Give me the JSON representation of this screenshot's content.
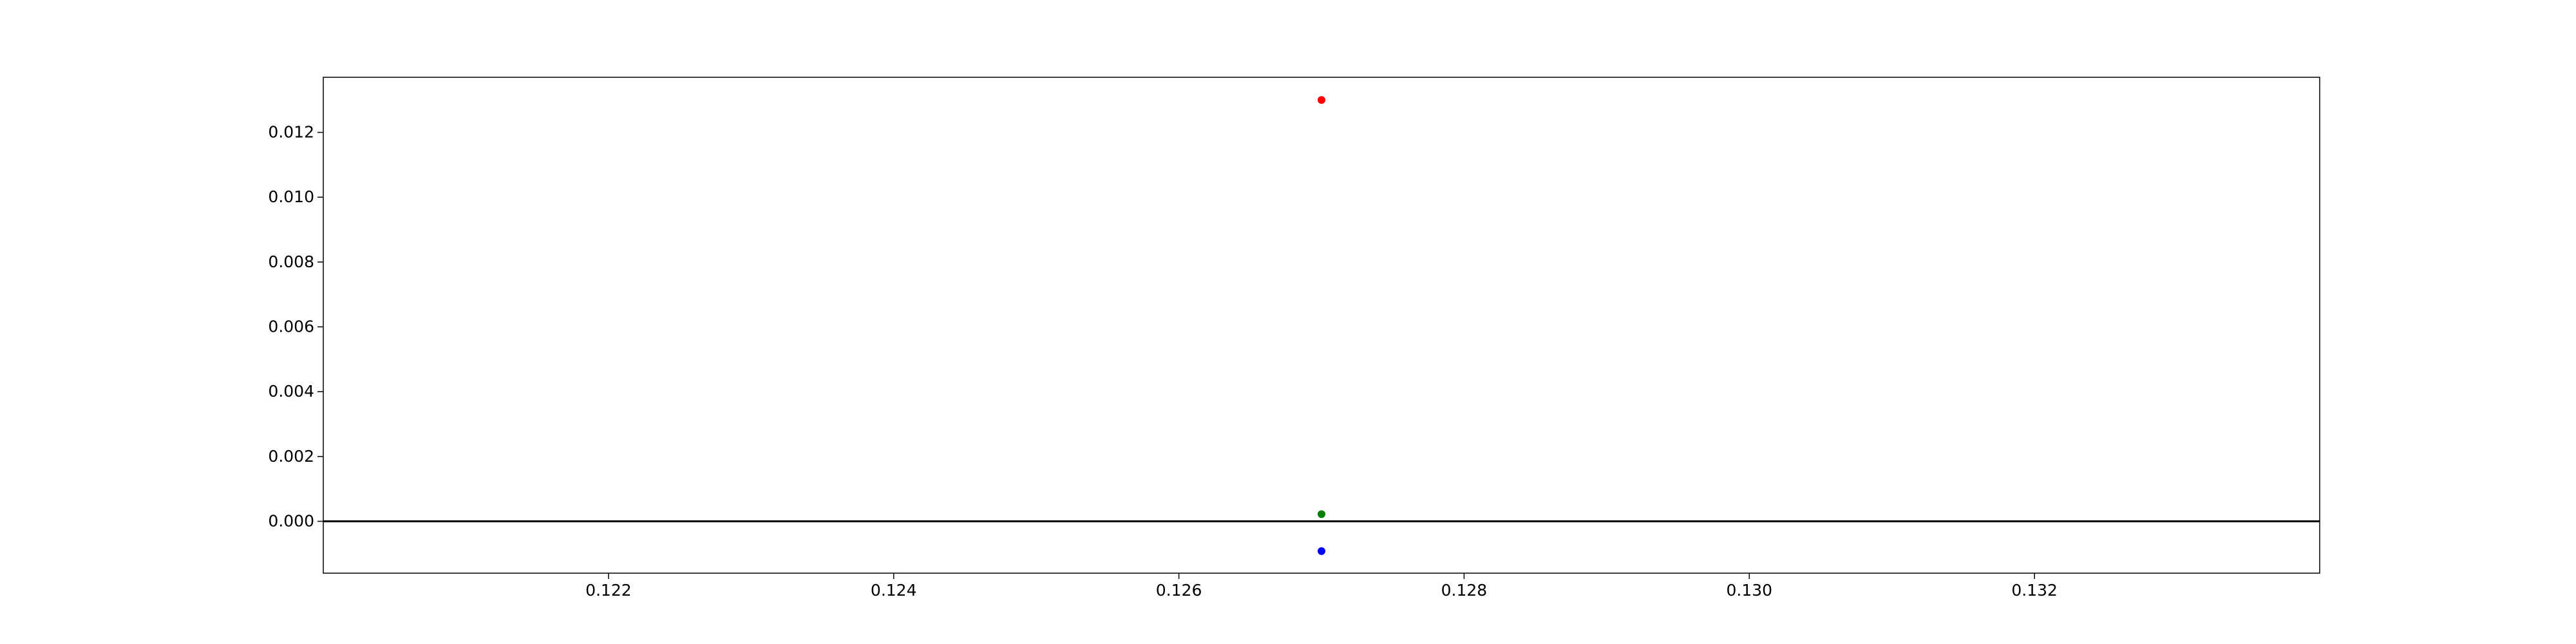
{
  "chart_data": {
    "type": "scatter",
    "title": "",
    "xlabel": "",
    "ylabel": "",
    "xlim": [
      0.12,
      0.134
    ],
    "ylim": [
      -0.0016,
      0.0137
    ],
    "x_ticks": [
      0.122,
      0.124,
      0.126,
      0.128,
      0.13,
      0.132
    ],
    "x_tick_labels": [
      "0.122",
      "0.124",
      "0.126",
      "0.128",
      "0.130",
      "0.132"
    ],
    "y_ticks": [
      0.0,
      0.002,
      0.004,
      0.006,
      0.008,
      0.01,
      0.012
    ],
    "y_tick_labels": [
      "0.000",
      "0.002",
      "0.004",
      "0.006",
      "0.008",
      "0.010",
      "0.012"
    ],
    "grid": false,
    "legend": "none",
    "reference_line": {
      "y": 0.0,
      "color": "#000000"
    },
    "series": [
      {
        "color": "#ff0000",
        "points": [
          {
            "x": 0.127,
            "y": 0.013
          }
        ]
      },
      {
        "color": "#008000",
        "points": [
          {
            "x": 0.127,
            "y": 0.00022
          }
        ]
      },
      {
        "color": "#0000ff",
        "points": [
          {
            "x": 0.127,
            "y": -0.00092
          }
        ]
      }
    ]
  }
}
